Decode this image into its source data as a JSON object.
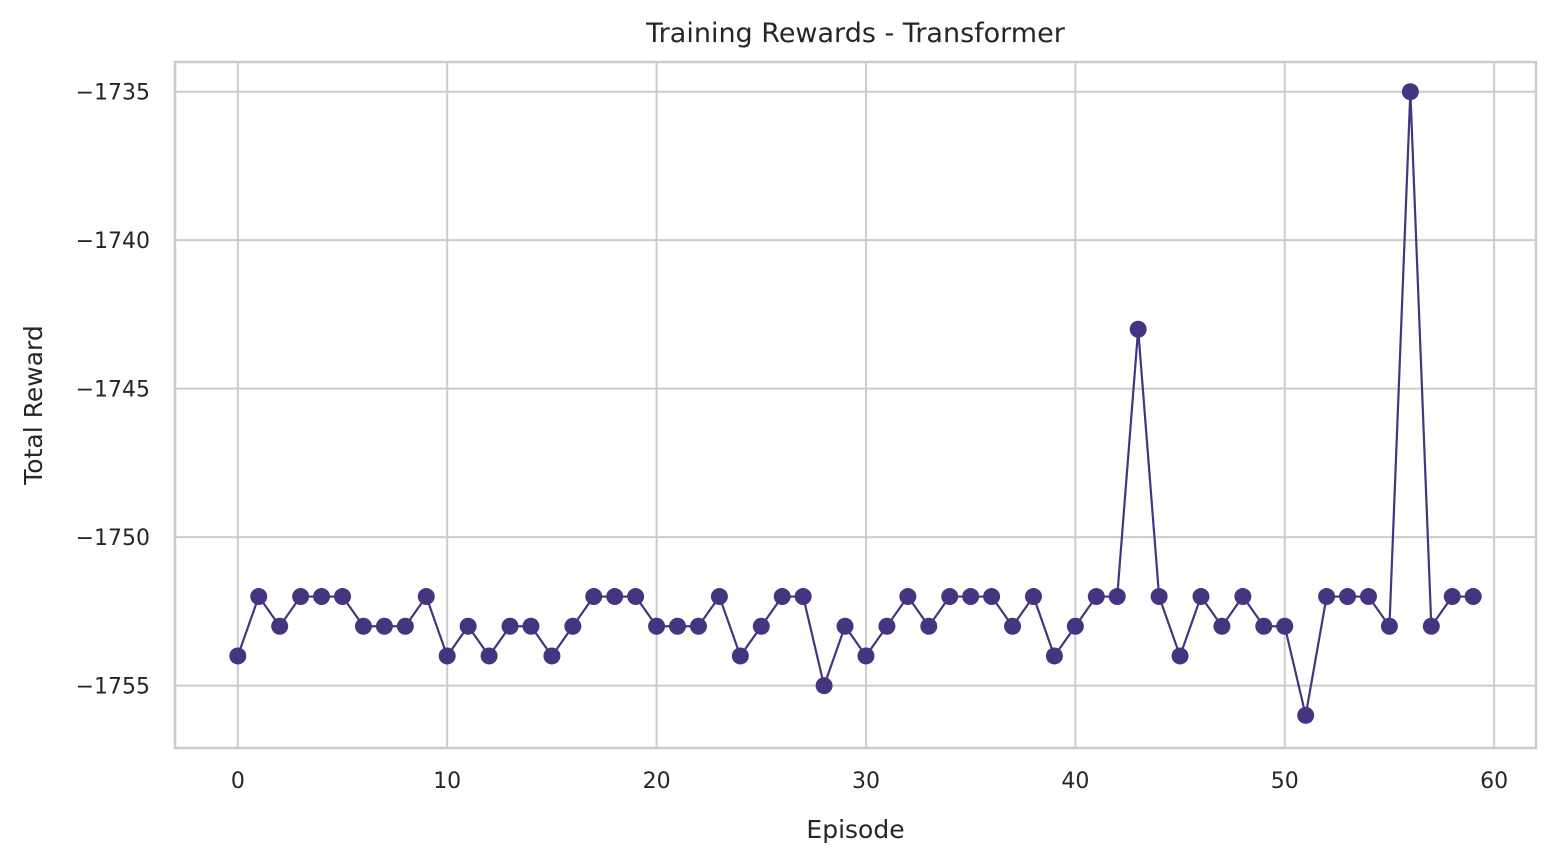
{
  "chart_data": {
    "type": "line",
    "title": "Training Rewards - Transformer",
    "xlabel": "Episode",
    "ylabel": "Total Reward",
    "xlim": [
      -3,
      62
    ],
    "ylim": [
      -1757.1,
      -1734.0
    ],
    "xticks": [
      0,
      10,
      20,
      30,
      40,
      50,
      60
    ],
    "xtick_labels": [
      "0",
      "10",
      "20",
      "30",
      "40",
      "50",
      "60"
    ],
    "yticks": [
      -1735,
      -1740,
      -1745,
      -1750,
      -1755
    ],
    "ytick_labels": [
      "−1735",
      "−1740",
      "−1745",
      "−1750",
      "−1755"
    ],
    "grid": true,
    "marker": "circle",
    "color": "#45347f",
    "series": [
      {
        "x": [
          0,
          1,
          2,
          3,
          4,
          5,
          6,
          7,
          8,
          9,
          10,
          11,
          12,
          13,
          14,
          15,
          16,
          17,
          18,
          19,
          20,
          21,
          22,
          23,
          24,
          25,
          26,
          27,
          28,
          29,
          30,
          31,
          32,
          33,
          34,
          35,
          36,
          37,
          38,
          39,
          40,
          41,
          42,
          43,
          44,
          45,
          46,
          47,
          48,
          49,
          50,
          51,
          52,
          53,
          54,
          55,
          56,
          57,
          58,
          59
        ],
        "values": [
          -1754,
          -1752,
          -1753,
          -1752,
          -1752,
          -1752,
          -1753,
          -1753,
          -1753,
          -1752,
          -1754,
          -1753,
          -1754,
          -1753,
          -1753,
          -1754,
          -1753,
          -1752,
          -1752,
          -1752,
          -1753,
          -1753,
          -1753,
          -1752,
          -1754,
          -1753,
          -1752,
          -1752,
          -1755,
          -1753,
          -1754,
          -1753,
          -1752,
          -1753,
          -1752,
          -1752,
          -1752,
          -1753,
          -1752,
          -1754,
          -1753,
          -1752,
          -1752,
          -1743,
          -1752,
          -1754,
          -1752,
          -1753,
          -1752,
          -1753,
          -1753,
          -1756,
          -1752,
          -1752,
          -1752,
          -1753,
          -1735,
          -1753,
          -1752,
          -1752
        ]
      }
    ]
  }
}
